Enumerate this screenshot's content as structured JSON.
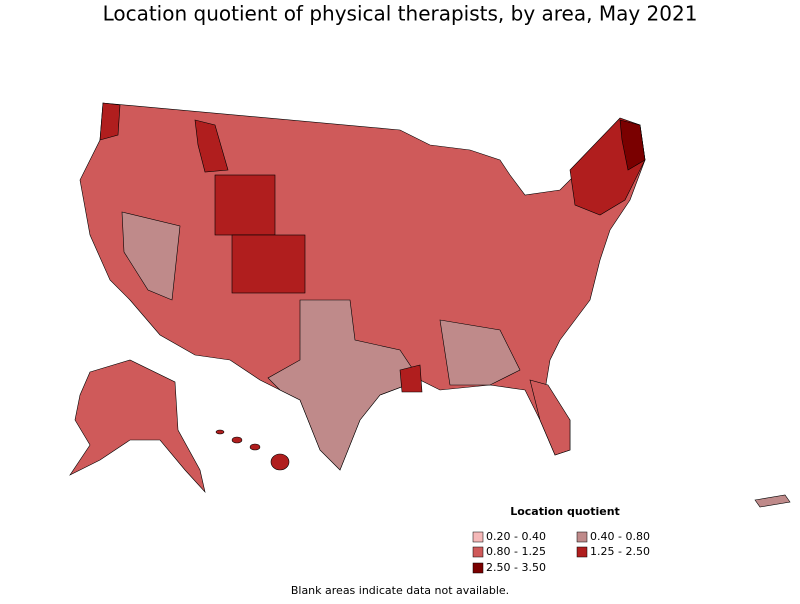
{
  "title": "Location quotient of physical therapists, by area, May 2021",
  "legend": {
    "title": "Location quotient",
    "items": [
      {
        "label": "0.20 - 0.40",
        "color": "#f5b8b8"
      },
      {
        "label": "0.40 - 0.80",
        "color": "#bf8a8a"
      },
      {
        "label": "0.80 - 1.25",
        "color": "#cf5a5a"
      },
      {
        "label": "1.25 - 2.50",
        "color": "#b01e1e"
      },
      {
        "label": "2.50 - 3.50",
        "color": "#7a0000"
      }
    ]
  },
  "footnote": "Blank areas indicate data not available."
}
